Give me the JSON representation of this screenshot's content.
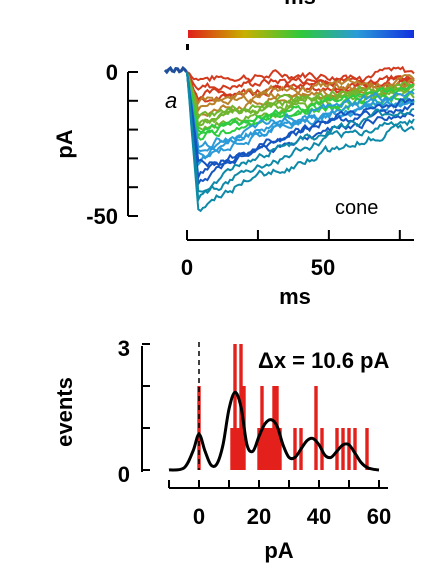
{
  "chart_data": [
    {
      "type": "line",
      "title": "",
      "panel_label": "a",
      "annotation": "cone",
      "top_label": "ms",
      "xlabel": "ms",
      "ylabel": "pA",
      "x_ticks": [
        "0",
        "50"
      ],
      "y_ticks": [
        "0",
        "-50"
      ],
      "xlim": [
        0,
        80
      ],
      "ylim": [
        -50,
        2
      ],
      "colorbar": {
        "from": "red",
        "to": "blue",
        "colors": [
          "#e0201b",
          "#c8b000",
          "#2fc83a",
          "#2a9ad8",
          "#1030e0"
        ]
      },
      "series_colors": [
        "#d23a1e",
        "#b8822a",
        "#6fb52e",
        "#2ecc40",
        "#2a9ad8",
        "#1455c0",
        "#0e8aa8"
      ],
      "traces_count": 24,
      "trace_peaks": [
        -2,
        -5,
        -8,
        -9,
        -11,
        -12,
        -14,
        -15,
        -17,
        -18,
        -20,
        -21,
        -23,
        -24,
        -26,
        -27,
        -29,
        -31,
        -33,
        -35,
        -38,
        -41,
        -44,
        -47
      ],
      "sample_x": [
        0,
        5,
        10,
        20,
        40,
        60,
        80
      ],
      "sample_trace_largest": [
        0,
        -47,
        -46,
        -41,
        -34,
        -27,
        -21
      ]
    },
    {
      "type": "bar",
      "title": "",
      "annotation": "Δx = 10.6 pA",
      "xlabel": "pA",
      "ylabel": "events",
      "x_ticks": [
        "0",
        "20",
        "40",
        "60"
      ],
      "y_ticks": [
        "0",
        "3"
      ],
      "xlim": [
        -10,
        63
      ],
      "ylim": [
        0,
        3
      ],
      "bar_color": "#e3201b",
      "bars": [
        {
          "x": 0,
          "value": 2
        },
        {
          "x": 11,
          "value": 1
        },
        {
          "x": 12,
          "value": 3
        },
        {
          "x": 13,
          "value": 1
        },
        {
          "x": 14,
          "value": 3
        },
        {
          "x": 15,
          "value": 2
        },
        {
          "x": 20,
          "value": 1
        },
        {
          "x": 21,
          "value": 2
        },
        {
          "x": 22,
          "value": 1
        },
        {
          "x": 23,
          "value": 1
        },
        {
          "x": 24,
          "value": 1
        },
        {
          "x": 25,
          "value": 2
        },
        {
          "x": 26,
          "value": 2
        },
        {
          "x": 27,
          "value": 1
        },
        {
          "x": 32,
          "value": 1
        },
        {
          "x": 34,
          "value": 1
        },
        {
          "x": 39,
          "value": 2
        },
        {
          "x": 41,
          "value": 1
        },
        {
          "x": 46,
          "value": 1
        },
        {
          "x": 48,
          "value": 1
        },
        {
          "x": 50,
          "value": 1
        },
        {
          "x": 52,
          "value": 1
        },
        {
          "x": 56,
          "value": 1
        }
      ],
      "fit": {
        "color": "#000000",
        "x": [
          -10,
          -5,
          -2,
          0,
          2,
          4,
          6,
          8,
          10,
          12,
          14,
          16,
          18,
          20,
          22,
          24,
          26,
          28,
          30,
          32,
          34,
          36,
          38,
          40,
          42,
          44,
          46,
          48,
          50,
          52,
          54,
          56,
          58,
          60
        ],
        "y": [
          0.0,
          0.05,
          0.45,
          0.85,
          0.45,
          0.12,
          0.15,
          0.6,
          1.45,
          1.85,
          1.5,
          0.6,
          0.45,
          0.8,
          1.1,
          1.2,
          1.05,
          0.6,
          0.3,
          0.3,
          0.5,
          0.7,
          0.75,
          0.6,
          0.35,
          0.3,
          0.45,
          0.6,
          0.6,
          0.4,
          0.18,
          0.06,
          0.02,
          0.0
        ]
      },
      "dashed_marker_x": 0
    }
  ]
}
